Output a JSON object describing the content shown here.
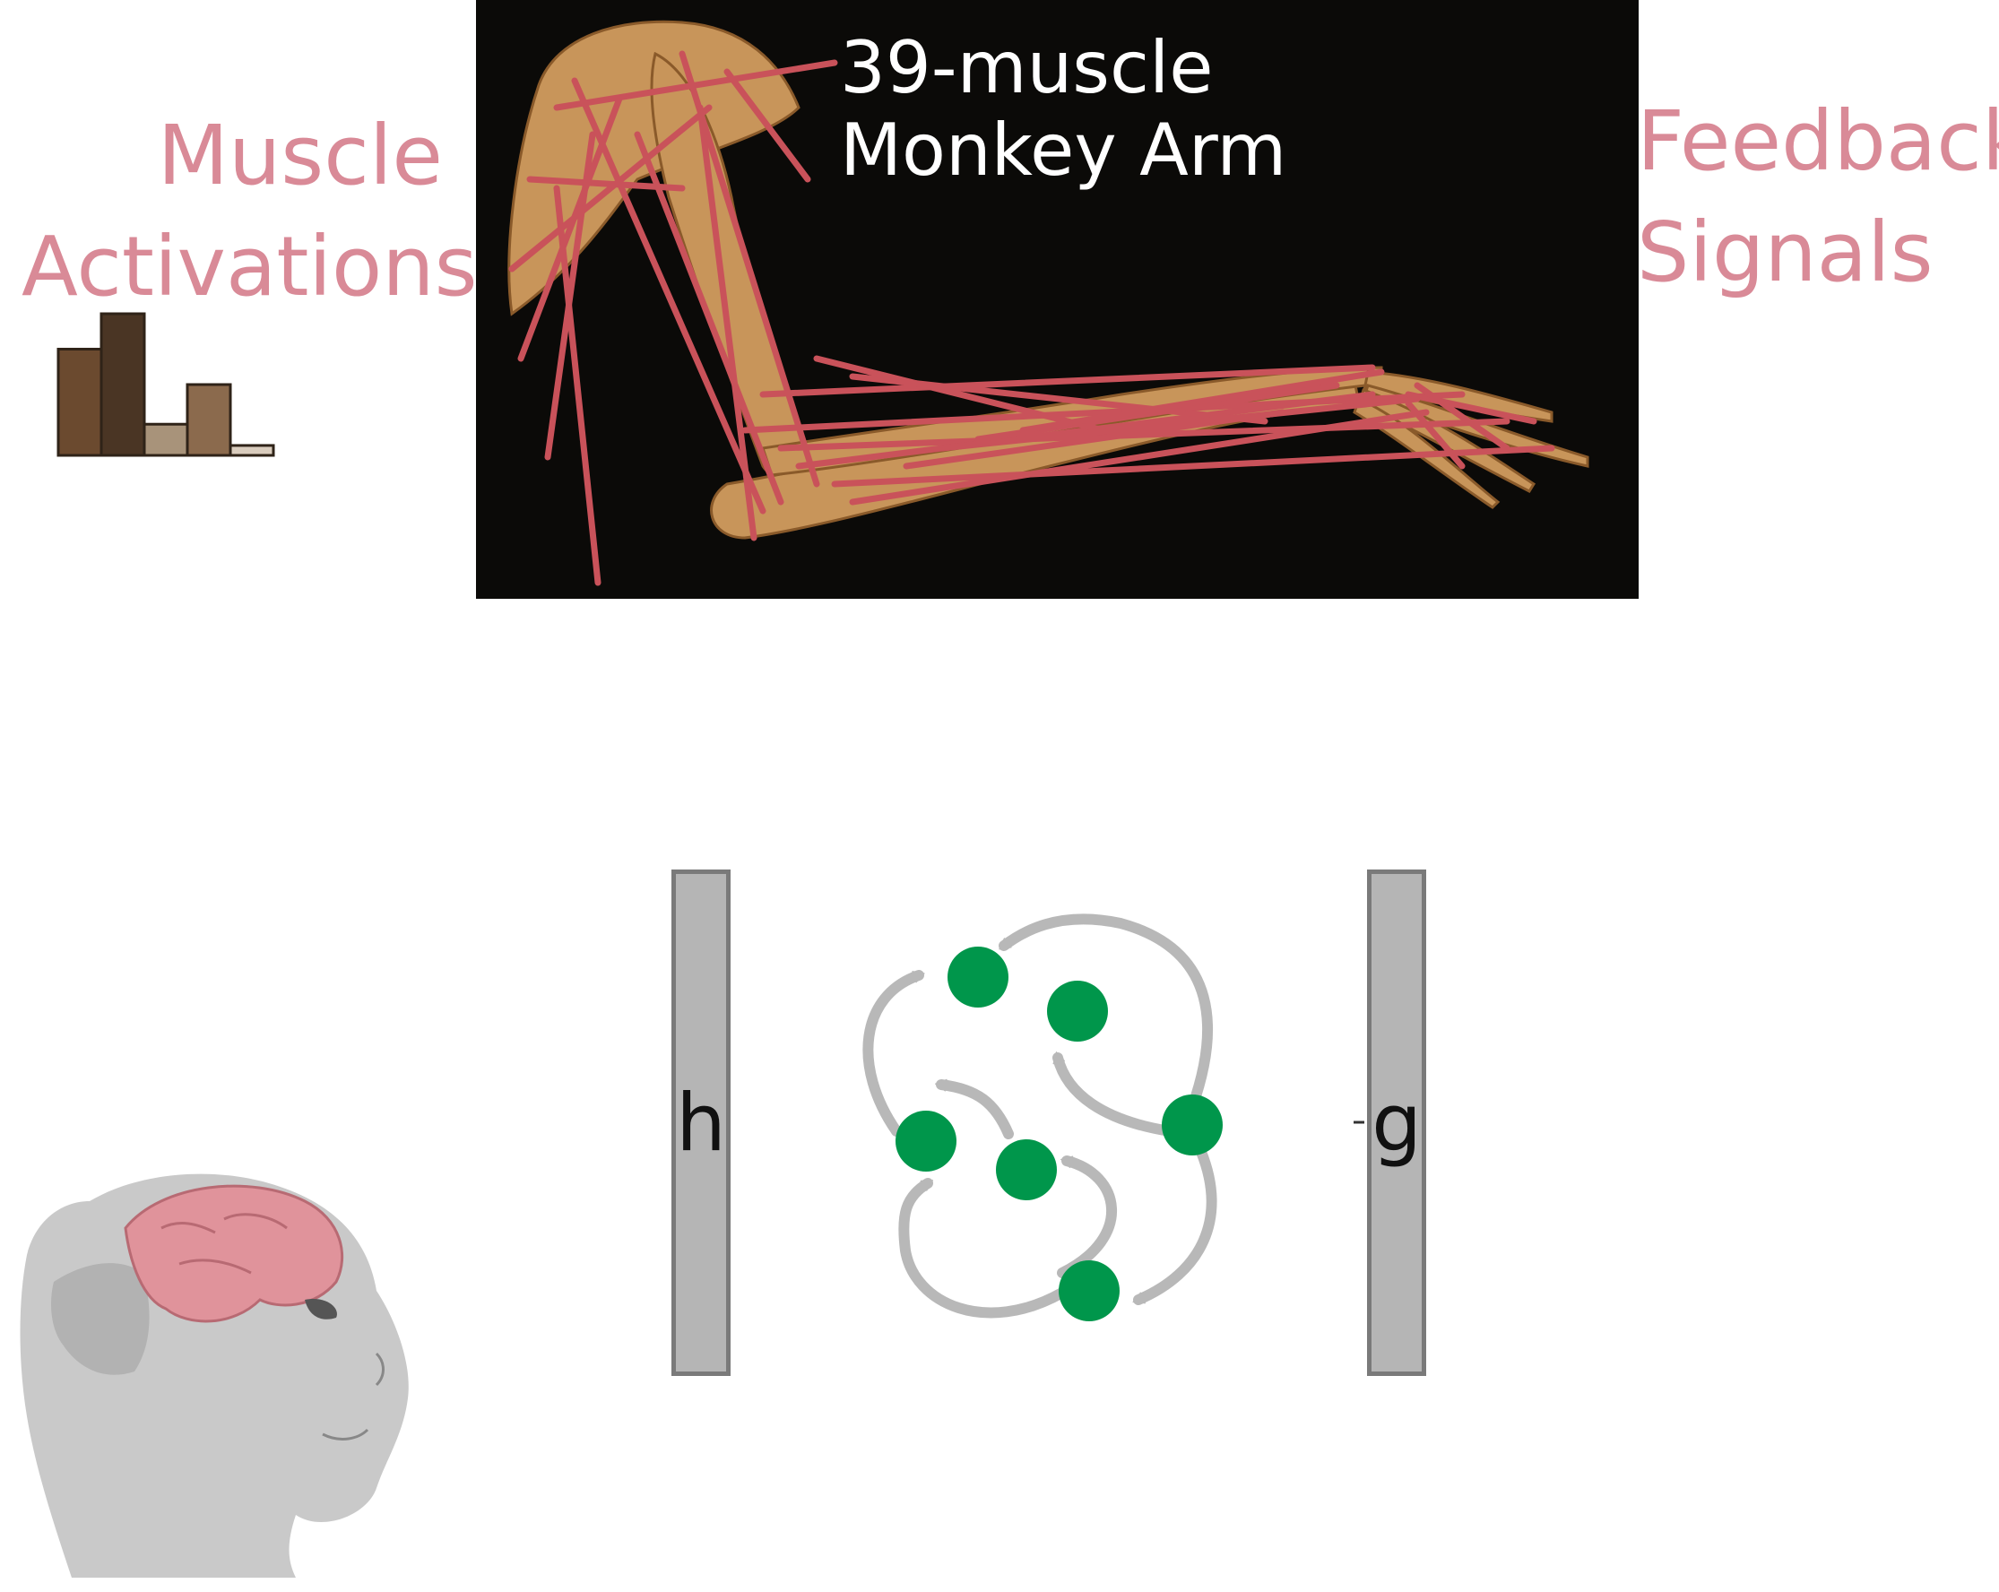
{
  "left_label": "Muscle\nActivations",
  "right_label": "Feedback\nSignals",
  "arm_model": {
    "title": "39-muscle\nMonkey Arm"
  },
  "network": {
    "input_layer": "h",
    "output_layer": "g",
    "units": 6
  },
  "activation_bars": [
    0.75,
    1.0,
    0.22,
    0.5,
    0.07
  ],
  "colors": {
    "label_pink": "#d98a97",
    "neuron_green": "#00964b",
    "layer_gray": "#b5b5b5",
    "muscle_red": "#c9525a",
    "bone": "#c8955a",
    "panel_black": "#0b0a08"
  },
  "icons": [
    "activation-bar-chart-icon",
    "monkey-head-brain-icon"
  ]
}
